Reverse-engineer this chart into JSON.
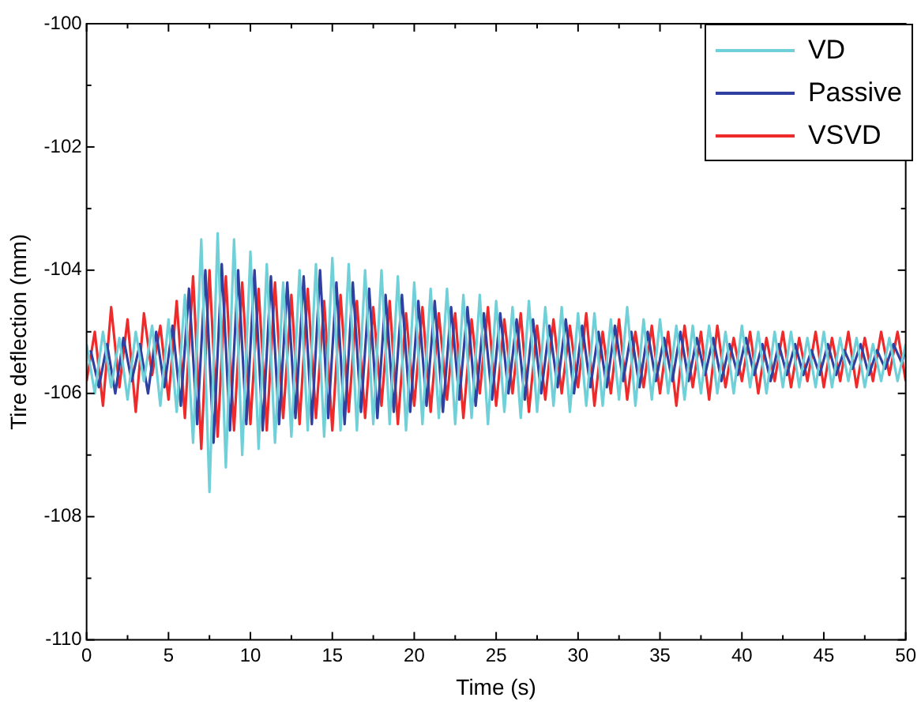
{
  "chart_data": {
    "type": "line",
    "xlabel": "Time (s)",
    "ylabel": "Tire deflection (mm)",
    "x": [
      0,
      0.5,
      1,
      1.5,
      2,
      2.5,
      3,
      3.5,
      4,
      4.5,
      5,
      5.5,
      6,
      6.5,
      7,
      7.5,
      8,
      8.5,
      9,
      9.5,
      10,
      10.5,
      11,
      11.5,
      12,
      12.5,
      13,
      13.5,
      14,
      14.5,
      15,
      15.5,
      16,
      16.5,
      17,
      17.5,
      18,
      18.5,
      19,
      19.5,
      20,
      20.5,
      21,
      21.5,
      22,
      22.5,
      23,
      23.5,
      24,
      24.5,
      25,
      25.5,
      26,
      26.5,
      27,
      27.5,
      28,
      28.5,
      29,
      29.5,
      30,
      30.5,
      31,
      31.5,
      32,
      32.5,
      33,
      33.5,
      34,
      34.5,
      35,
      35.5,
      36,
      36.5,
      37,
      37.5,
      38,
      38.5,
      39,
      39.5,
      40,
      40.5,
      41,
      41.5,
      42,
      42.5,
      43,
      43.5,
      44,
      44.5,
      45,
      45.5,
      46,
      46.5,
      47,
      47.5,
      48,
      48.5,
      49,
      49.5,
      50
    ],
    "series": [
      {
        "name": "VD",
        "color": "#6fd0d8",
        "values": [
          -105.2,
          -106.0,
          -105.0,
          -105.9,
          -105.1,
          -106.1,
          -105.0,
          -105.8,
          -104.9,
          -106.2,
          -104.8,
          -106.3,
          -104.4,
          -106.8,
          -103.5,
          -107.6,
          -103.4,
          -107.2,
          -103.5,
          -107.0,
          -103.7,
          -106.9,
          -103.9,
          -106.8,
          -104.2,
          -106.7,
          -104.0,
          -106.6,
          -103.9,
          -106.7,
          -103.8,
          -106.6,
          -103.9,
          -106.6,
          -104.0,
          -106.5,
          -104.0,
          -106.5,
          -104.1,
          -106.6,
          -104.2,
          -106.5,
          -104.3,
          -106.4,
          -104.3,
          -106.5,
          -104.4,
          -106.4,
          -104.4,
          -106.5,
          -104.5,
          -106.3,
          -104.6,
          -106.4,
          -104.5,
          -106.3,
          -104.6,
          -106.2,
          -104.6,
          -106.3,
          -104.7,
          -106.2,
          -104.7,
          -106.2,
          -104.8,
          -106.1,
          -104.6,
          -106.2,
          -104.8,
          -106.1,
          -104.8,
          -106.0,
          -104.9,
          -106.1,
          -104.9,
          -106.0,
          -104.9,
          -106.0,
          -105.0,
          -106.0,
          -104.9,
          -105.9,
          -105.0,
          -106.0,
          -105.0,
          -105.9,
          -105.0,
          -105.9,
          -105.1,
          -105.9,
          -105.0,
          -105.9,
          -105.1,
          -105.8,
          -105.1,
          -105.9,
          -105.2,
          -105.8,
          -105.1,
          -105.8,
          -105.2
        ]
      },
      {
        "name": "Passive",
        "color": "#3040a0",
        "x": [
          0.25,
          0.75,
          1.25,
          1.75,
          2.25,
          2.75,
          3.25,
          3.75,
          4.25,
          4.75,
          5.25,
          5.75,
          6.25,
          6.75,
          7.25,
          7.75,
          8.25,
          8.75,
          9.25,
          9.75,
          10.25,
          10.75,
          11.25,
          11.75,
          12.25,
          12.75,
          13.25,
          13.75,
          14.25,
          14.75,
          15.25,
          15.75,
          16.25,
          16.75,
          17.25,
          17.75,
          18.25,
          18.75,
          19.25,
          19.75,
          20.25,
          20.75,
          21.25,
          21.75,
          22.25,
          22.75,
          23.25,
          23.75,
          24.25,
          24.75,
          25.25,
          25.75,
          26.25,
          26.75,
          27.25,
          27.75,
          28.25,
          28.75,
          29.25,
          29.75,
          30.25,
          30.75,
          31.25,
          31.75,
          32.25,
          32.75,
          33.25,
          33.75,
          34.25,
          34.75,
          35.25,
          35.75,
          36.25,
          36.75,
          37.25,
          37.75,
          38.25,
          38.75,
          39.25,
          39.75,
          40.25,
          40.75,
          41.25,
          41.75,
          42.25,
          42.75,
          43.25,
          43.75,
          44.25,
          44.75,
          45.25,
          45.75,
          46.25,
          46.75,
          47.25,
          47.75,
          48.25,
          48.75,
          49.25,
          49.75,
          50
        ],
        "values": [
          -105.3,
          -105.9,
          -105.2,
          -106.0,
          -105.1,
          -105.8,
          -105.2,
          -106.0,
          -105.0,
          -105.9,
          -104.9,
          -106.2,
          -104.3,
          -106.5,
          -104.0,
          -106.8,
          -103.9,
          -106.6,
          -104.0,
          -106.5,
          -104.0,
          -106.6,
          -104.1,
          -106.5,
          -104.2,
          -106.4,
          -104.1,
          -106.5,
          -104.0,
          -106.4,
          -104.2,
          -106.5,
          -104.2,
          -106.3,
          -104.3,
          -106.4,
          -104.4,
          -106.3,
          -104.4,
          -106.3,
          -104.5,
          -106.2,
          -104.5,
          -106.3,
          -104.6,
          -106.1,
          -104.6,
          -106.2,
          -104.7,
          -106.1,
          -104.7,
          -106.0,
          -104.8,
          -106.1,
          -104.8,
          -106.0,
          -104.9,
          -105.9,
          -104.8,
          -106.0,
          -104.9,
          -105.9,
          -105.0,
          -105.9,
          -104.9,
          -105.8,
          -105.0,
          -105.9,
          -105.0,
          -105.8,
          -105.1,
          -105.8,
          -105.0,
          -105.8,
          -105.1,
          -105.7,
          -105.1,
          -105.8,
          -105.2,
          -105.7,
          -105.1,
          -105.7,
          -105.2,
          -105.8,
          -105.2,
          -105.7,
          -105.2,
          -105.7,
          -105.3,
          -105.7,
          -105.2,
          -105.7,
          -105.3,
          -105.6,
          -105.2,
          -105.7,
          -105.3,
          -105.6,
          -105.2,
          -105.5,
          -105.3
        ]
      },
      {
        "name": "VSVD",
        "color": "#ee2a2a",
        "values": [
          -105.8,
          -105.0,
          -106.2,
          -104.6,
          -105.9,
          -104.8,
          -106.3,
          -104.7,
          -105.7,
          -104.9,
          -106.1,
          -104.5,
          -106.4,
          -104.1,
          -106.9,
          -104.0,
          -106.7,
          -104.1,
          -106.6,
          -104.2,
          -106.5,
          -104.3,
          -106.6,
          -104.2,
          -106.4,
          -104.4,
          -106.5,
          -104.3,
          -106.4,
          -104.5,
          -106.6,
          -104.4,
          -106.3,
          -104.5,
          -106.4,
          -104.6,
          -106.2,
          -104.5,
          -106.5,
          -104.7,
          -106.2,
          -104.6,
          -106.3,
          -104.7,
          -106.1,
          -104.7,
          -106.4,
          -104.8,
          -106.0,
          -104.6,
          -106.2,
          -104.8,
          -106.0,
          -104.7,
          -106.3,
          -104.9,
          -106.1,
          -104.8,
          -106.0,
          -104.9,
          -105.9,
          -104.7,
          -106.2,
          -105.0,
          -106.0,
          -104.8,
          -106.1,
          -105.0,
          -105.9,
          -104.9,
          -106.0,
          -105.0,
          -106.2,
          -104.9,
          -105.9,
          -105.0,
          -106.1,
          -104.9,
          -105.9,
          -105.1,
          -105.8,
          -105.0,
          -106.0,
          -105.1,
          -105.8,
          -105.0,
          -105.9,
          -105.1,
          -105.8,
          -105.0,
          -105.9,
          -105.1,
          -105.8,
          -105.0,
          -105.9,
          -105.1,
          -105.8,
          -105.0,
          -105.7,
          -105.0,
          -105.8
        ]
      }
    ],
    "xlim": [
      0,
      50
    ],
    "xticks": [
      0,
      {
        "value": 2.5,
        "label": null
      },
      5,
      {
        "value": 7.5,
        "label": null
      },
      10,
      {
        "value": 12.5,
        "label": null
      },
      15,
      {
        "value": 17.5,
        "label": null
      },
      20,
      {
        "value": 22.5,
        "label": null
      },
      25,
      {
        "value": 27.5,
        "label": null
      },
      30,
      {
        "value": 32.5,
        "label": null
      },
      35,
      {
        "value": 37.5,
        "label": null
      },
      40,
      {
        "value": 42.5,
        "label": null
      },
      45,
      {
        "value": 47.5,
        "label": null
      },
      50
    ],
    "ylim": [
      -110,
      -100
    ],
    "yticks": [
      -110,
      {
        "value": -109,
        "label": null
      },
      -108,
      {
        "value": -107,
        "label": null
      },
      -106,
      {
        "value": -105,
        "label": null
      },
      -104,
      {
        "value": -103,
        "label": null
      },
      -102,
      {
        "value": -101,
        "label": null
      },
      -100
    ],
    "grid": false,
    "legend": "top right",
    "marker": "none",
    "line_style": "solid"
  }
}
